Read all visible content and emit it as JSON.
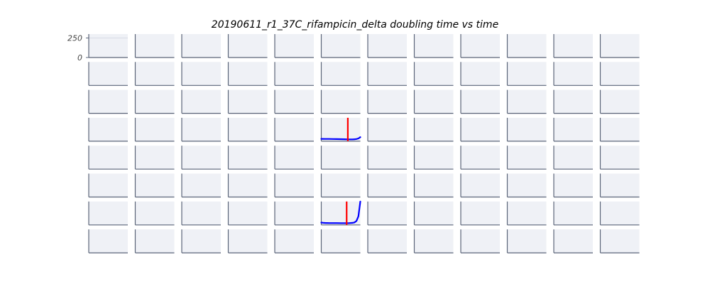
{
  "chart_data": {
    "type": "line",
    "title": "20190611_r1_37C_rifampicin_delta doubling time vs time",
    "grid": {
      "rows": 8,
      "cols": 12
    },
    "y_ticks": [
      "250",
      "0"
    ],
    "ylim": [
      0,
      300
    ],
    "xlim": [
      0,
      100
    ],
    "colors": {
      "panel_bg": "#eff1f6",
      "axis": "#5a6478",
      "line": "#0000ff",
      "marker": "#ff0000",
      "gridline": "#d7dbe6"
    },
    "series": [
      {
        "row": 3,
        "col": 5,
        "x": [
          0,
          10,
          20,
          30,
          40,
          50,
          60,
          70,
          80,
          85,
          90,
          95,
          100
        ],
        "y": [
          30,
          29,
          29,
          28,
          27,
          26,
          25,
          24,
          24,
          25,
          28,
          35,
          52
        ],
        "marker_x": 68
      },
      {
        "row": 6,
        "col": 5,
        "x": [
          0,
          5,
          10,
          20,
          30,
          40,
          50,
          60,
          70,
          80,
          85,
          90,
          95,
          100
        ],
        "y": [
          30,
          27,
          25,
          24,
          24,
          24,
          23,
          23,
          23,
          26,
          32,
          50,
          110,
          300
        ],
        "marker_x": 65
      }
    ]
  }
}
